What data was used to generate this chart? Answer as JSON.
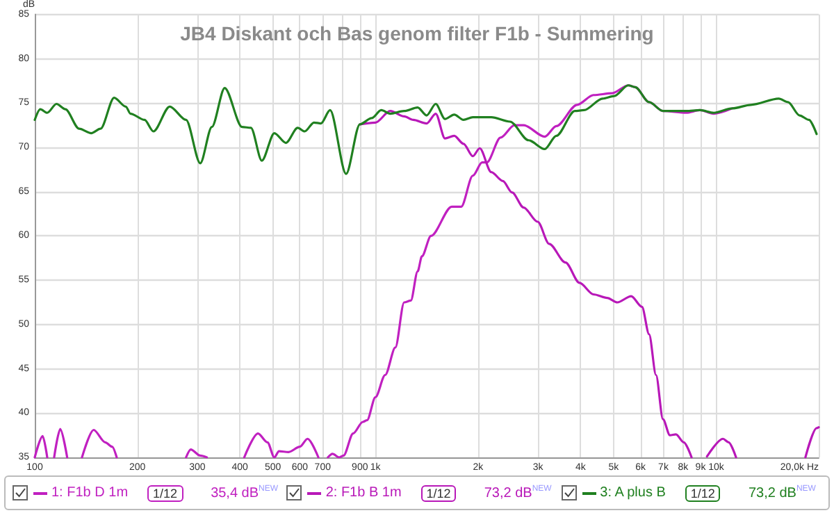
{
  "chart_data": {
    "type": "line",
    "title": "JB4 Diskant och Bas genom filter F1b - Summering",
    "ylabel": "dB",
    "log": "x",
    "xlim": [
      100,
      20000
    ],
    "ylim": [
      35,
      85
    ],
    "xticks": [
      100,
      200,
      300,
      400,
      500,
      600,
      700,
      {
        "value": 800,
        "label": null
      },
      900,
      {
        "value": 1000,
        "label": "1k"
      },
      {
        "value": 2000,
        "label": "2k"
      },
      {
        "value": 3000,
        "label": "3k"
      },
      {
        "value": 4000,
        "label": "4k"
      },
      {
        "value": 5000,
        "label": "5k"
      },
      {
        "value": 6000,
        "label": "6k"
      },
      {
        "value": 7000,
        "label": "7k"
      },
      {
        "value": 8000,
        "label": "8k"
      },
      {
        "value": 9000,
        "label": "9k"
      },
      {
        "value": 10000,
        "label": "10k"
      },
      {
        "value": 20000,
        "label": "20,0k Hz"
      }
    ],
    "yticks": [
      35,
      40,
      45,
      50,
      55,
      60,
      65,
      70,
      75,
      80,
      85
    ],
    "grid": true,
    "legend": "bottom",
    "marker": "none",
    "annotations": [
      "1/12",
      "35,4 dB$^{NEW}$",
      "1/12",
      "73,2 dB$^{NEW}$",
      "1/12",
      "73,2 dB$^{NEW}$"
    ],
    "series": [
      {
        "name": "1: F1b D 1m",
        "color": "#c020c0",
        "x": [
          100,
          105.5,
          108.8,
          111,
          114,
          118.8,
          124.5,
          130,
          137.6,
          148.9,
          161,
          168.7,
          174,
          200,
          278,
          287,
          306,
          320,
          360,
          412,
          452,
          482,
          505,
          521,
          556,
          600,
          632,
          680,
          700,
          725,
          748,
          783,
          806,
          860,
          918,
          945,
          1000,
          1068,
          1144,
          1214,
          1270,
          1330,
          1369,
          1455,
          1675,
          1785,
          1931,
          2056,
          2123,
          2330,
          2558,
          2723,
          3140,
          3396,
          3907,
          4365,
          4942,
          5521,
          5785,
          6356,
          6982,
          8165,
          8962,
          9844,
          11160
        ],
        "values": [
          35,
          37.4,
          35,
          null,
          35,
          38.2,
          35,
          null,
          35,
          38.1,
          36.7,
          36.2,
          35,
          null,
          35,
          35.9,
          35.2,
          35,
          null,
          35,
          37.7,
          36.7,
          35,
          35.7,
          35.6,
          36.2,
          37.1,
          35,
          null,
          35,
          35.4,
          35,
          35.2,
          37.7,
          39.0,
          39.2,
          41.8,
          44.3,
          47.4,
          52.5,
          52.7,
          56.0,
          57.7,
          60.0,
          63.3,
          63.3,
          66.8,
          68.3,
          68.3,
          71.1,
          72.5,
          72.5,
          71.2,
          72.4,
          74.8,
          75.9,
          76.1,
          77.0,
          76.8,
          75.1,
          74.1,
          73.9,
          74.2,
          73.8,
          74.4
        ]
      },
      {
        "name": "2: F1b B 1m",
        "color": "#b818b8",
        "x": [
          900,
          1000,
          1105,
          1214,
          1290,
          1413,
          1503,
          1600,
          1703,
          1813,
          1931,
          2023,
          2188,
          2365,
          2518,
          2723,
          2993,
          3236,
          3612,
          3972,
          4365,
          4789,
          5128,
          5631,
          6057,
          6356,
          6660,
          6982,
          7318,
          7620,
          8035,
          8470,
          9000,
          9400,
          10470,
          10880,
          11440,
          15000,
          18280,
          19720,
          20000
        ],
        "values": [
          72.6,
          72.8,
          74.1,
          73.5,
          73.1,
          72.7,
          73.8,
          71.0,
          71.3,
          70.4,
          69.0,
          69.9,
          67.2,
          66.2,
          64.9,
          63.2,
          61.6,
          59.1,
          57.0,
          54.7,
          53.4,
          53.0,
          52.5,
          53.2,
          52.0,
          48.9,
          44.3,
          39.3,
          37.5,
          37.6,
          36.7,
          35,
          null,
          35.1,
          37.1,
          36.7,
          35,
          null,
          35,
          38.3,
          38.4
        ]
      },
      {
        "name": "3: A plus B",
        "color": "#208020",
        "x": [
          100,
          103.8,
          108.8,
          115.8,
          123,
          135,
          146.5,
          156,
          171,
          185,
          191,
          210,
          223,
          249,
          278,
          306,
          331,
          361,
          406,
          431,
          464,
          505,
          546,
          591,
          620,
          660,
          692,
          736,
          820,
          900,
          975,
          1040,
          1105,
          1214,
          1330,
          1413,
          1503,
          1600,
          1703,
          1813,
          1931,
          2188,
          2483,
          2814,
          3140,
          3396,
          3848,
          4095,
          4642,
          5024,
          5521,
          5785,
          6356,
          6982,
          8165,
          8962,
          9844,
          11160,
          12650,
          15270,
          16250,
          17580,
          18720,
          19720
        ],
        "values": [
          73.1,
          74.3,
          73.9,
          74.9,
          74.3,
          72.1,
          71.6,
          72.1,
          75.6,
          74.6,
          73.8,
          73.1,
          71.8,
          74.6,
          73.1,
          68.2,
          72.3,
          76.7,
          72.3,
          72.2,
          68.5,
          71.6,
          70.5,
          72.2,
          71.8,
          72.8,
          72.7,
          74.2,
          67.0,
          72.6,
          73.3,
          74.2,
          73.8,
          74.1,
          74.5,
          73.6,
          74.9,
          73.2,
          73.7,
          73.1,
          73.4,
          73.4,
          72.9,
          70.8,
          69.8,
          71.3,
          74.1,
          74.2,
          75.5,
          75.8,
          77.0,
          76.8,
          75.1,
          74.1,
          74.1,
          74.2,
          73.9,
          74.4,
          74.8,
          75.5,
          75.1,
          73.6,
          73.1,
          71.5
        ]
      }
    ]
  }
}
